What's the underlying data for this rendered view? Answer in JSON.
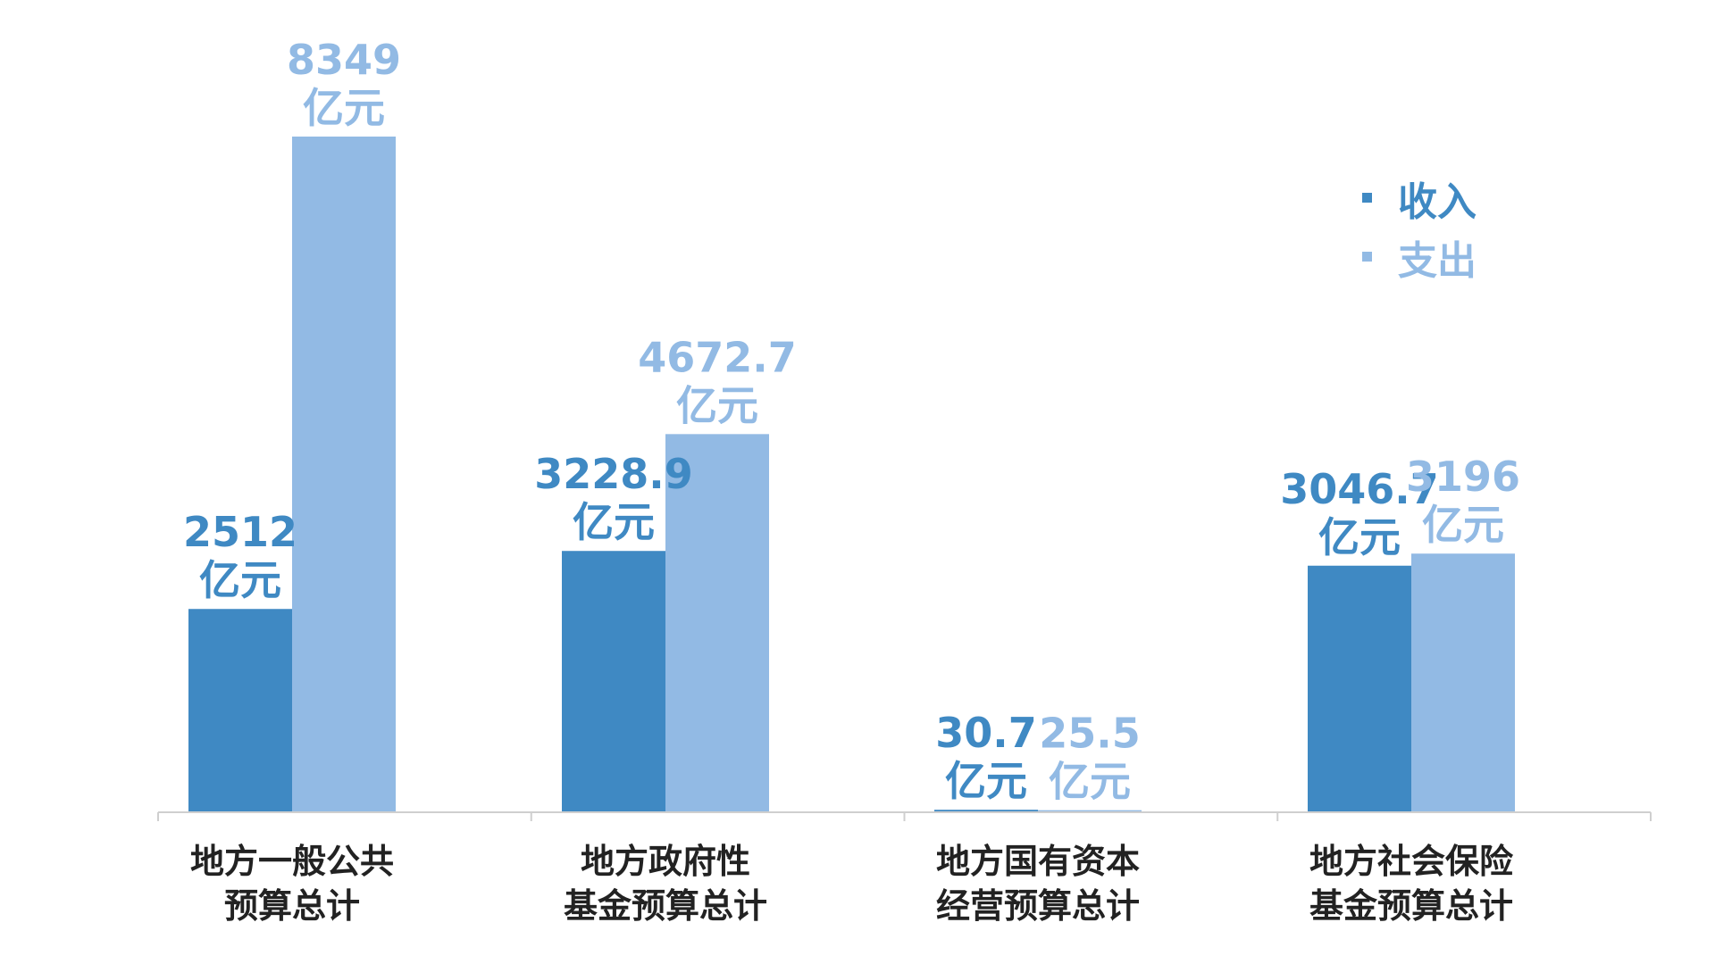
{
  "chart_data": {
    "type": "bar",
    "categories": [
      [
        "地方一般公共",
        "预算总计"
      ],
      [
        "地方政府性",
        "基金预算总计"
      ],
      [
        "地方国有资本",
        "经营预算总计"
      ],
      [
        "地方社会保险",
        "基金预算总计"
      ]
    ],
    "series": [
      {
        "name": "收入",
        "color": "#3f89c3",
        "values": [
          2512,
          3228.9,
          30.7,
          3046.7
        ],
        "labels": [
          "2512",
          "3228.9",
          "30.7",
          "3046.7"
        ]
      },
      {
        "name": "支出",
        "color": "#92bae4",
        "values": [
          8349,
          4672.7,
          25.5,
          3196
        ],
        "labels": [
          "8349",
          "4672.7",
          "25.5",
          "3196"
        ]
      }
    ],
    "unit": "亿元",
    "ylim": [
      0,
      8349
    ],
    "grid": false,
    "legend_position": "top-right",
    "axis_color": "#cfcfcf"
  }
}
